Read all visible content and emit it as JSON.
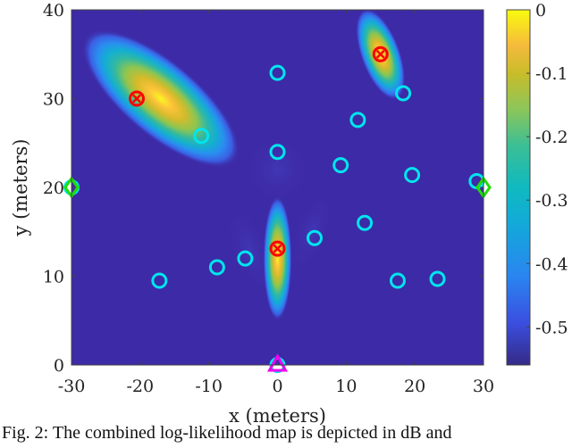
{
  "chart_data": {
    "type": "heatmap",
    "xlabel": "x (meters)",
    "ylabel": "y (meters)",
    "xlim": [
      -30,
      30
    ],
    "ylim": [
      0,
      40
    ],
    "xticks": [
      "-30",
      "-20",
      "-10",
      "0",
      "10",
      "20",
      "30"
    ],
    "yticks": [
      "0",
      "10",
      "20",
      "30",
      "40"
    ],
    "colorbar": {
      "range": [
        -0.56,
        0
      ],
      "ticks": [
        "0",
        "-0.1",
        "-0.2",
        "-0.3",
        "-0.4",
        "-0.5"
      ],
      "colormap": "parula"
    },
    "peaks": [
      {
        "x": -21,
        "y": 30,
        "value": 0
      },
      {
        "x": 15,
        "y": 35,
        "value": 0
      },
      {
        "x": 0,
        "y": 13,
        "value": 0
      }
    ],
    "markers": {
      "circles": {
        "color": "#00e5ee",
        "points": [
          [
            0,
            32.9
          ],
          [
            -11.1,
            25.8
          ],
          [
            0,
            24
          ],
          [
            11.7,
            27.6
          ],
          [
            18.3,
            30.6
          ],
          [
            9.2,
            22.5
          ],
          [
            19.6,
            21.4
          ],
          [
            29,
            20.7
          ],
          [
            12.7,
            16
          ],
          [
            5.4,
            14.3
          ],
          [
            -4.7,
            12
          ],
          [
            -8.8,
            11
          ],
          [
            -17.2,
            9.5
          ],
          [
            17.5,
            9.5
          ],
          [
            23.3,
            9.7
          ],
          [
            -30,
            20
          ],
          [
            0,
            0
          ]
        ]
      },
      "targets": {
        "color": "#ff0000",
        "points": [
          [
            -20.5,
            30
          ],
          [
            15,
            35
          ],
          [
            0,
            13.1
          ]
        ]
      },
      "diamonds": {
        "color": "#22dd00",
        "points": [
          [
            -30,
            20
          ],
          [
            30,
            20
          ]
        ]
      },
      "triangles": {
        "color": "#ee00ee",
        "points": [
          [
            0,
            0
          ]
        ]
      }
    }
  },
  "caption": "Fig. 2: The combined log-likelihood map is depicted in dB and"
}
